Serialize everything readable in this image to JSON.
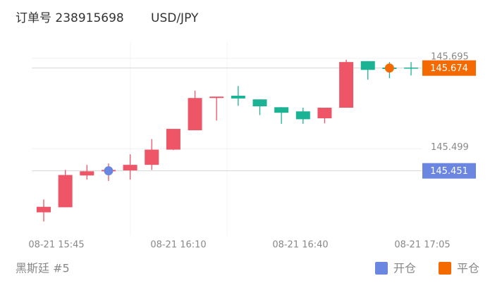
{
  "header": {
    "order": "订单号 238915698",
    "symbol": "USD/JPY"
  },
  "chart_data": {
    "type": "candlestick",
    "x_labels": [
      "08-21 15:45",
      "08-21 16:10",
      "08-21 16:40",
      "08-21 17:05"
    ],
    "open": [
      145.361,
      145.372,
      145.441,
      145.45,
      145.452,
      145.464,
      145.497,
      145.539,
      145.609,
      145.614,
      145.606,
      145.589,
      145.58,
      145.565,
      145.588,
      145.689,
      145.675,
      145.675
    ],
    "high": [
      145.389,
      145.453,
      145.464,
      145.467,
      145.487,
      145.52,
      145.542,
      145.625,
      145.612,
      145.635,
      145.606,
      145.589,
      145.588,
      145.588,
      145.692,
      145.689,
      145.687,
      145.687
    ],
    "low": [
      145.341,
      145.372,
      145.432,
      145.429,
      145.432,
      145.453,
      145.496,
      145.539,
      145.56,
      145.592,
      145.572,
      145.553,
      145.553,
      145.554,
      145.588,
      145.649,
      145.652,
      145.658
    ],
    "close": [
      145.373,
      145.442,
      145.45,
      145.453,
      145.464,
      145.497,
      145.542,
      145.609,
      145.612,
      145.608,
      145.591,
      145.577,
      145.563,
      145.588,
      145.687,
      145.67,
      145.672,
      145.674
    ],
    "up_color": "#ee5567",
    "down_color": "#1bb394",
    "markers": [
      {
        "name": "开仓",
        "color": "#6a86e0",
        "index": 3,
        "value": 145.451
      },
      {
        "name": "平仓",
        "color": "#f56a00",
        "index": 16,
        "value": 145.674
      }
    ],
    "ylim": [
      145.31,
      145.73
    ],
    "yticks": [
      145.499,
      145.695
    ]
  },
  "footer": "黑斯廷 #5"
}
